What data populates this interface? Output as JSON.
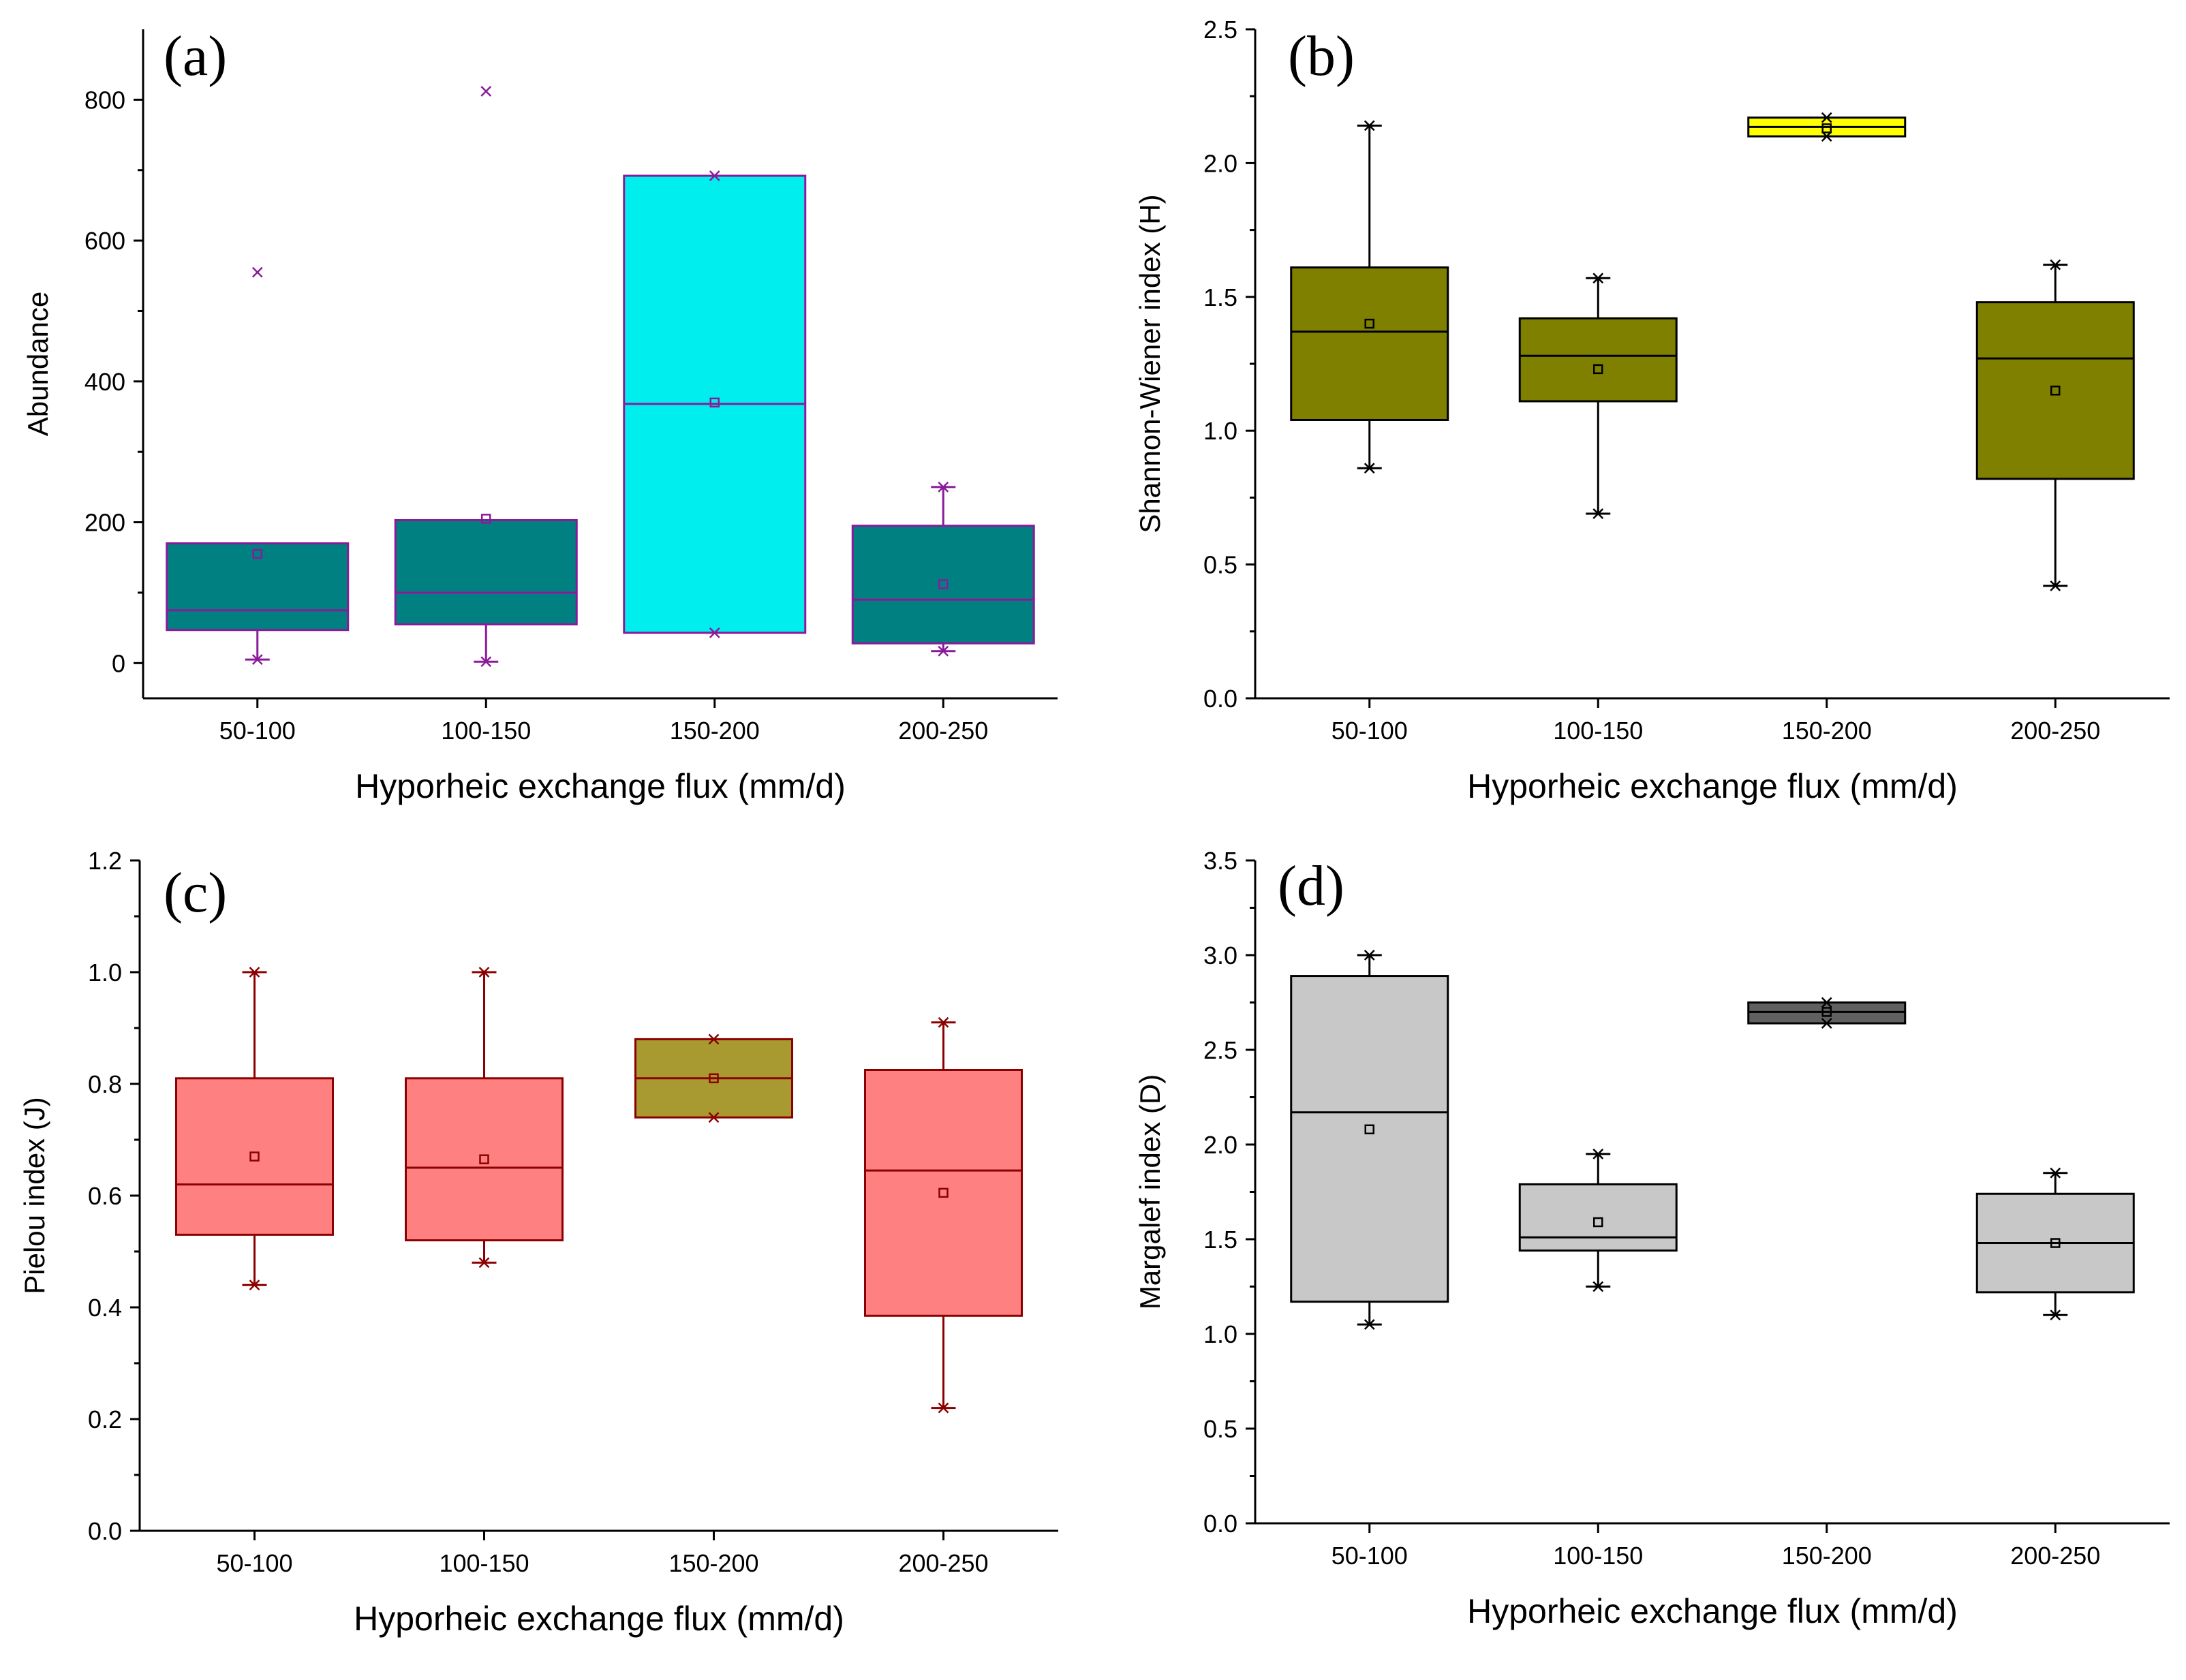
{
  "chart_data": [
    {
      "type": "box",
      "panel": "(a)",
      "xlabel": "Hyporheic exchange flux (mm/d)",
      "ylabel": "Abundance",
      "ylim": [
        -50,
        900
      ],
      "yticks": [
        0,
        200,
        400,
        600,
        800
      ],
      "ytick_labels": [
        "0",
        "200",
        "400",
        "600",
        "800"
      ],
      "categories": [
        "50-100",
        "100-150",
        "150-200",
        "200-250"
      ],
      "colors": {
        "fill": [
          "#008080",
          "#008080",
          "#00eeee",
          "#008080"
        ],
        "line": "#8b1a9b",
        "marker": "#8b1a9b"
      },
      "boxes": [
        {
          "q1": 47,
          "median": 75,
          "q3": 170,
          "mean": 155,
          "whisker_low": 5,
          "whisker_high": null,
          "extremes": [
            5,
            555
          ]
        },
        {
          "q1": 55,
          "median": 100,
          "q3": 203,
          "mean": 205,
          "whisker_low": 2,
          "whisker_high": null,
          "extremes": [
            2,
            812
          ]
        },
        {
          "q1": 43,
          "median": 368,
          "q3": 692,
          "mean": 370,
          "whisker_low": null,
          "whisker_high": null,
          "extremes": [
            43,
            692
          ]
        },
        {
          "q1": 28,
          "median": 90,
          "q3": 195,
          "mean": 112,
          "whisker_low": 17,
          "whisker_high": 250,
          "extremes": [
            17,
            250
          ]
        }
      ]
    },
    {
      "type": "box",
      "panel": "(b)",
      "xlabel": "Hyporheic exchange flux (mm/d)",
      "ylabel": "Shannon-Wiener index (H)",
      "ylim": [
        0,
        2.5
      ],
      "yticks": [
        0,
        0.5,
        1.0,
        1.5,
        2.0,
        2.5
      ],
      "ytick_labels": [
        "0.0",
        "0.5",
        "1.0",
        "1.5",
        "2.0",
        "2.5"
      ],
      "categories": [
        "50-100",
        "100-150",
        "150-200",
        "200-250"
      ],
      "colors": {
        "fill": [
          "#808000",
          "#808000",
          "#ffff00",
          "#808000"
        ],
        "line": "#000000",
        "marker": "#000000"
      },
      "boxes": [
        {
          "q1": 1.04,
          "median": 1.37,
          "q3": 1.61,
          "mean": 1.4,
          "whisker_low": 0.86,
          "whisker_high": 2.14,
          "extremes": [
            0.86,
            2.14
          ]
        },
        {
          "q1": 1.11,
          "median": 1.28,
          "q3": 1.42,
          "mean": 1.23,
          "whisker_low": 0.69,
          "whisker_high": 1.57,
          "extremes": [
            0.69,
            1.57
          ]
        },
        {
          "q1": 2.1,
          "median": 2.135,
          "q3": 2.17,
          "mean": 2.13,
          "whisker_low": null,
          "whisker_high": null,
          "extremes": [
            2.1,
            2.17
          ]
        },
        {
          "q1": 0.82,
          "median": 1.27,
          "q3": 1.48,
          "mean": 1.15,
          "whisker_low": 0.42,
          "whisker_high": 1.62,
          "extremes": [
            0.42,
            1.62
          ]
        }
      ]
    },
    {
      "type": "box",
      "panel": "(c)",
      "xlabel": "Hyporheic exchange flux (mm/d)",
      "ylabel": "Pielou index (J)",
      "ylim": [
        0,
        1.2
      ],
      "yticks": [
        0,
        0.2,
        0.4,
        0.6,
        0.8,
        1.0,
        1.2
      ],
      "ytick_labels": [
        "0.0",
        "0.2",
        "0.4",
        "0.6",
        "0.8",
        "1.0",
        "1.2"
      ],
      "categories": [
        "50-100",
        "100-150",
        "150-200",
        "200-250"
      ],
      "colors": {
        "fill": [
          "#ff8080",
          "#ff8080",
          "#a89a30",
          "#ff8080"
        ],
        "line": "#8b0000",
        "marker": "#8b0000"
      },
      "boxes": [
        {
          "q1": 0.53,
          "median": 0.62,
          "q3": 0.81,
          "mean": 0.67,
          "whisker_low": 0.44,
          "whisker_high": 1.0,
          "extremes": [
            0.44,
            1.0
          ]
        },
        {
          "q1": 0.52,
          "median": 0.65,
          "q3": 0.81,
          "mean": 0.665,
          "whisker_low": 0.48,
          "whisker_high": 1.0,
          "extremes": [
            0.48,
            1.0
          ]
        },
        {
          "q1": 0.74,
          "median": 0.81,
          "q3": 0.88,
          "mean": 0.81,
          "whisker_low": null,
          "whisker_high": null,
          "extremes": [
            0.74,
            0.88
          ]
        },
        {
          "q1": 0.385,
          "median": 0.645,
          "q3": 0.825,
          "mean": 0.605,
          "whisker_low": 0.22,
          "whisker_high": 0.91,
          "extremes": [
            0.22,
            0.91
          ]
        }
      ]
    },
    {
      "type": "box",
      "panel": "(d)",
      "xlabel": "Hyporheic exchange flux (mm/d)",
      "ylabel": "Margalef index (D)",
      "ylim": [
        0,
        3.5
      ],
      "yticks": [
        0,
        0.5,
        1.0,
        1.5,
        2.0,
        2.5,
        3.0,
        3.5
      ],
      "ytick_labels": [
        "0.0",
        "0.5",
        "1.0",
        "1.5",
        "2.0",
        "2.5",
        "3.0",
        "3.5"
      ],
      "categories": [
        "50-100",
        "100-150",
        "150-200",
        "200-250"
      ],
      "colors": {
        "fill": [
          "#c8c8c8",
          "#c8c8c8",
          "#606060",
          "#c8c8c8"
        ],
        "line": "#000000",
        "marker": "#000000"
      },
      "boxes": [
        {
          "q1": 1.17,
          "median": 2.17,
          "q3": 2.89,
          "mean": 2.08,
          "whisker_low": 1.05,
          "whisker_high": 3.0,
          "extremes": [
            1.05,
            3.0
          ]
        },
        {
          "q1": 1.44,
          "median": 1.51,
          "q3": 1.79,
          "mean": 1.59,
          "whisker_low": 1.25,
          "whisker_high": 1.95,
          "extremes": [
            1.25,
            1.95
          ]
        },
        {
          "q1": 2.64,
          "median": 2.7,
          "q3": 2.75,
          "mean": 2.7,
          "whisker_low": null,
          "whisker_high": null,
          "extremes": [
            2.64,
            2.75
          ]
        },
        {
          "q1": 1.22,
          "median": 1.48,
          "q3": 1.74,
          "mean": 1.48,
          "whisker_low": 1.1,
          "whisker_high": 1.85,
          "extremes": [
            1.1,
            1.85
          ]
        }
      ]
    }
  ]
}
